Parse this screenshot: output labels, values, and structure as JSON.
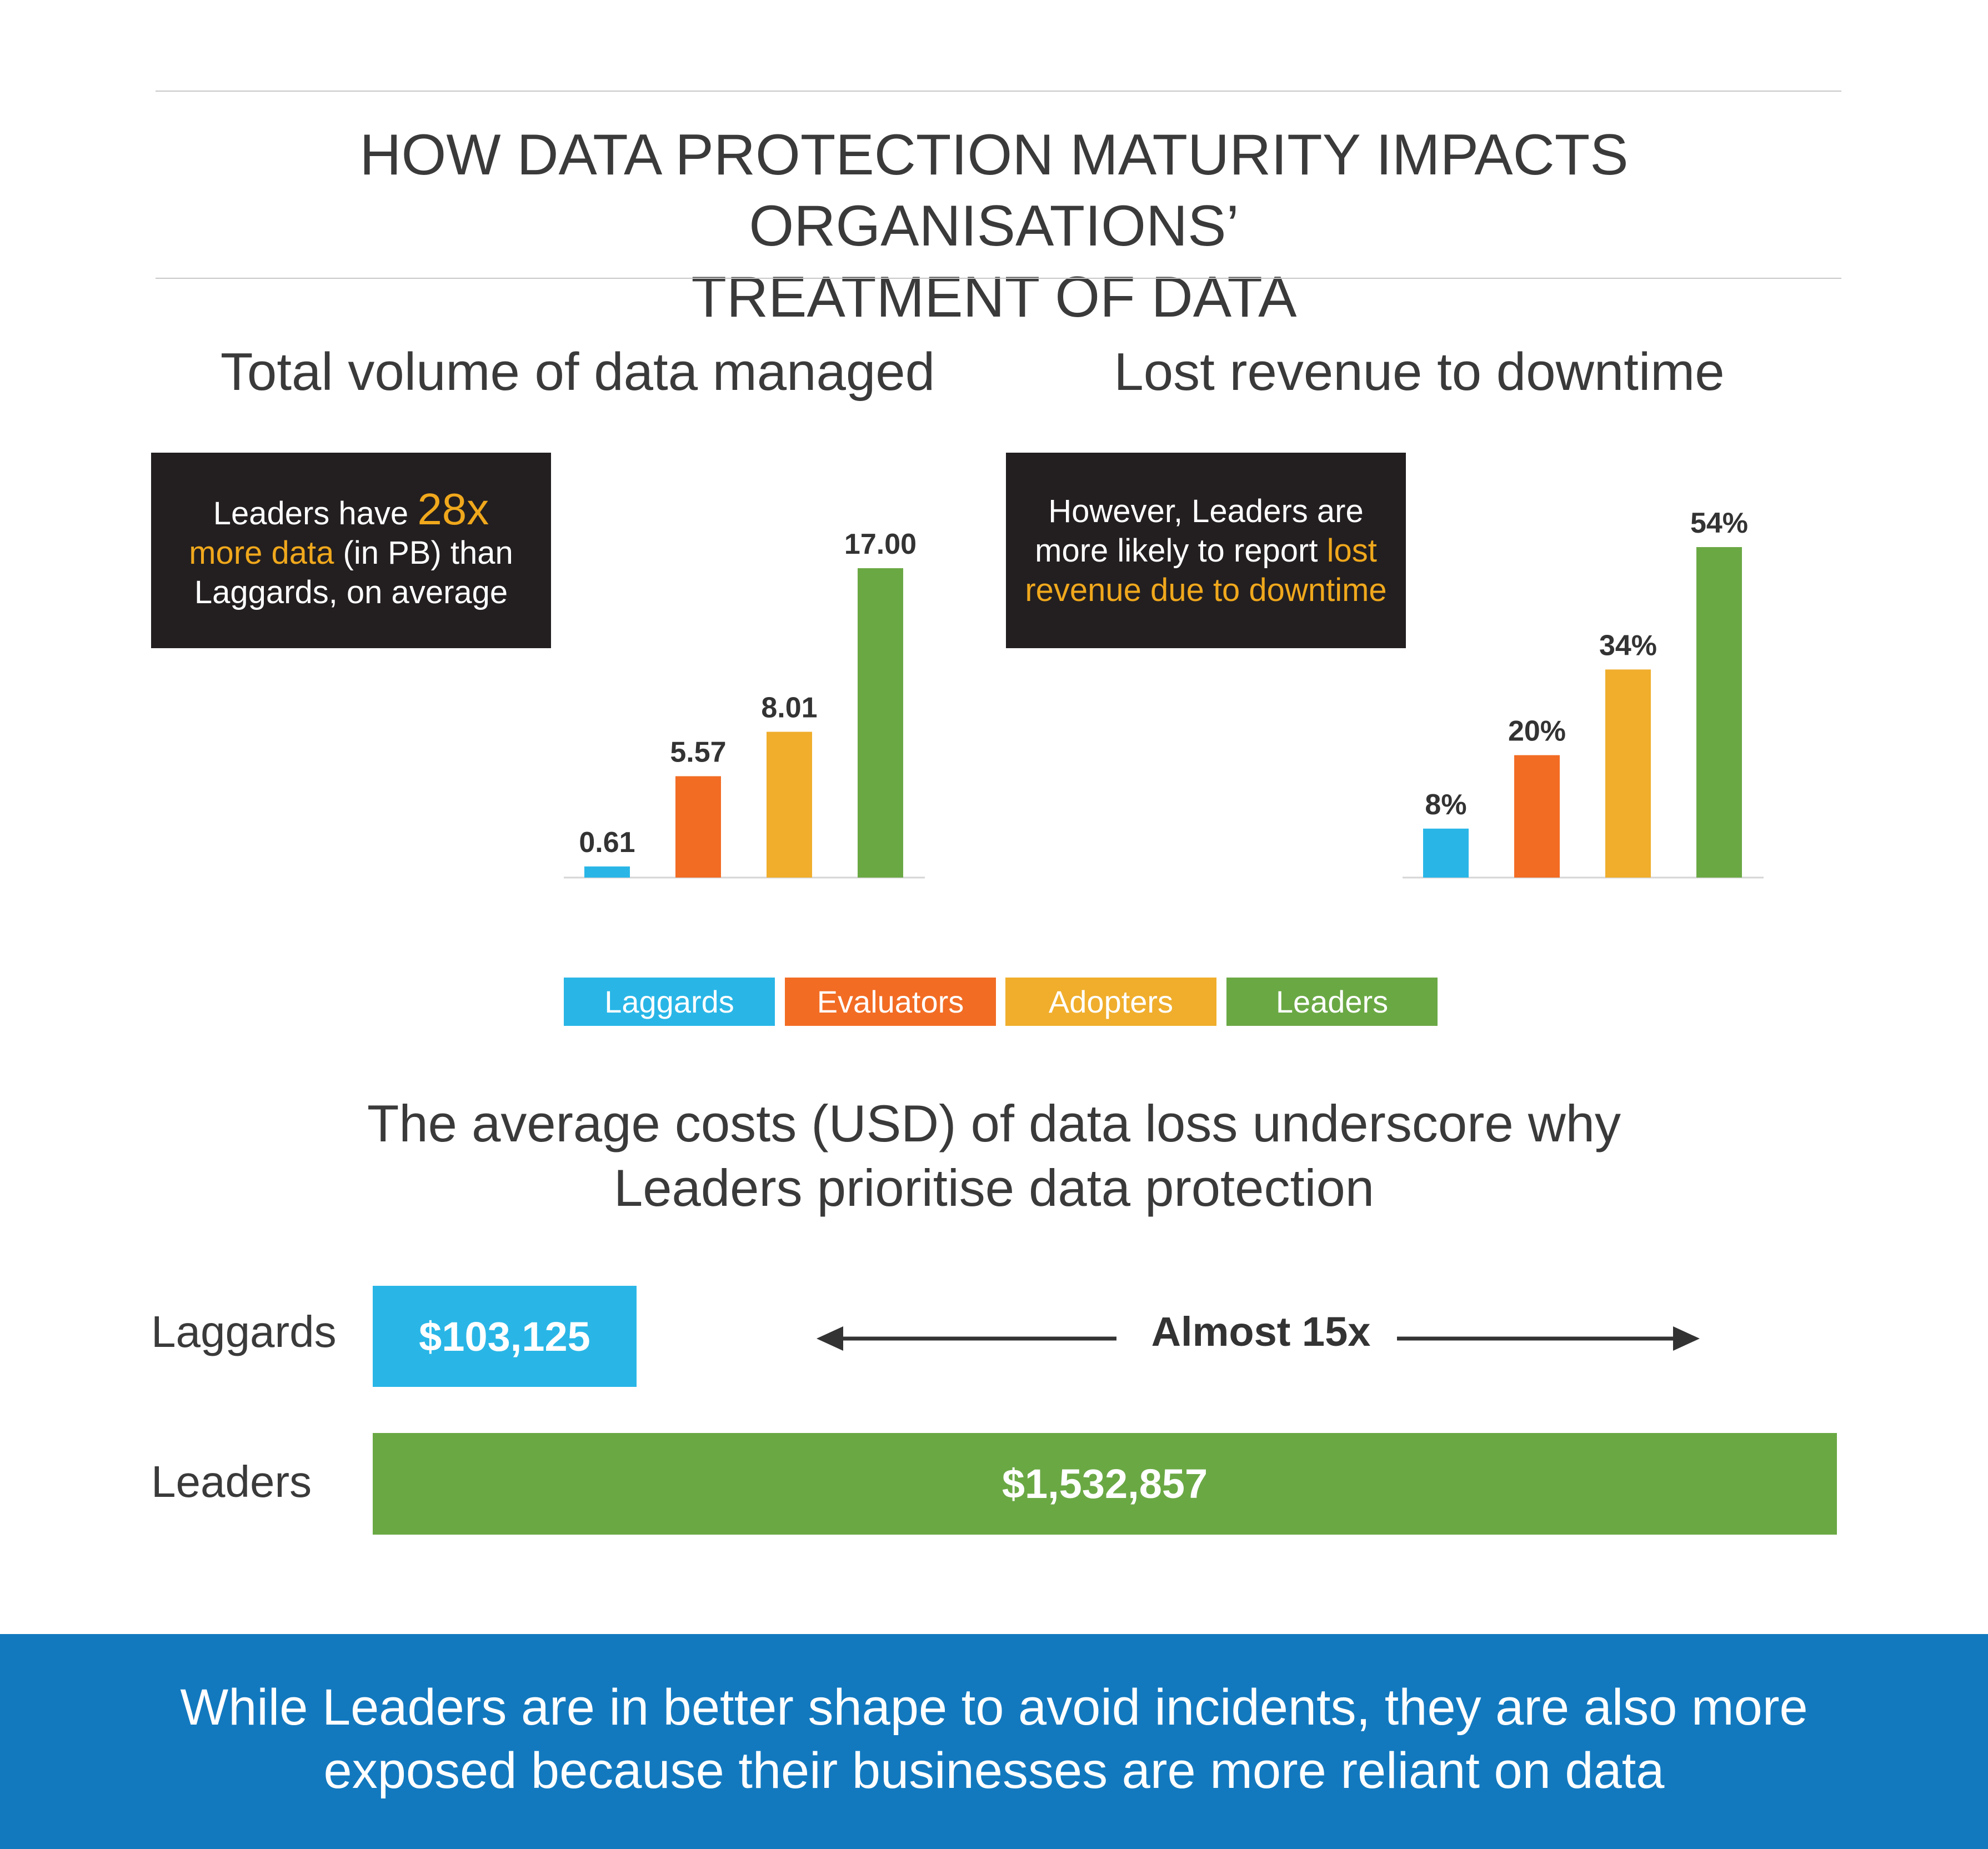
{
  "title": {
    "line1": "HOW DATA PROTECTION MATURITY IMPACTS ORGANISATIONS’",
    "line2": "TREATMENT OF DATA"
  },
  "colors": {
    "laggards": "#29b6e7",
    "evaluators": "#f26c24",
    "adopters": "#f0ae2c",
    "leaders": "#6aa844",
    "callout_bg": "#231f20",
    "highlight": "#f0a81c",
    "footer_bg": "#1279bf"
  },
  "volume": {
    "heading": "Total volume of data managed",
    "callout": {
      "part1": "Leaders have ",
      "highlight_big": "28x",
      "highlight": "more data",
      "part2": " (in PB) than",
      "part3": "Laggards, on average"
    }
  },
  "revenue": {
    "heading": "Lost revenue to downtime",
    "callout": {
      "line1": "However, Leaders are",
      "part2": "more likely to report ",
      "highlight1": "lost",
      "highlight2": "revenue due to downtime"
    }
  },
  "legend": [
    "Laggards",
    "Evaluators",
    "Adopters",
    "Leaders"
  ],
  "costs": {
    "heading_line1": "The average costs (USD) of data loss underscore why",
    "heading_line2": "Leaders prioritise data protection",
    "rows": [
      {
        "label": "Laggards",
        "value_label": "$103,125"
      },
      {
        "label": "Leaders",
        "value_label": "$1,532,857"
      }
    ],
    "multiplier": "Almost 15x"
  },
  "footer": {
    "line1": "While Leaders are in better shape to avoid incidents, they are also more",
    "line2": "exposed because their businesses are more reliant on data"
  },
  "chart_data": [
    {
      "type": "bar",
      "title": "Total volume of data managed",
      "categories": [
        "Laggards",
        "Evaluators",
        "Adopters",
        "Leaders"
      ],
      "values": [
        0.61,
        5.57,
        8.01,
        17.0
      ],
      "value_labels": [
        "0.61",
        "5.57",
        "8.01",
        "17.00"
      ],
      "ylim": [
        0,
        17.0
      ]
    },
    {
      "type": "bar",
      "title": "Lost revenue to downtime",
      "categories": [
        "Laggards",
        "Evaluators",
        "Adopters",
        "Leaders"
      ],
      "values": [
        8,
        20,
        34,
        54
      ],
      "value_labels": [
        "8%",
        "20%",
        "34%",
        "54%"
      ],
      "ylim": [
        0,
        54
      ]
    },
    {
      "type": "bar",
      "orientation": "horizontal",
      "title": "The average costs (USD) of data loss underscore why Leaders prioritise data protection",
      "categories": [
        "Laggards",
        "Leaders"
      ],
      "values": [
        103125,
        1532857
      ],
      "value_labels": [
        "$103,125",
        "$1,532,857"
      ]
    }
  ]
}
